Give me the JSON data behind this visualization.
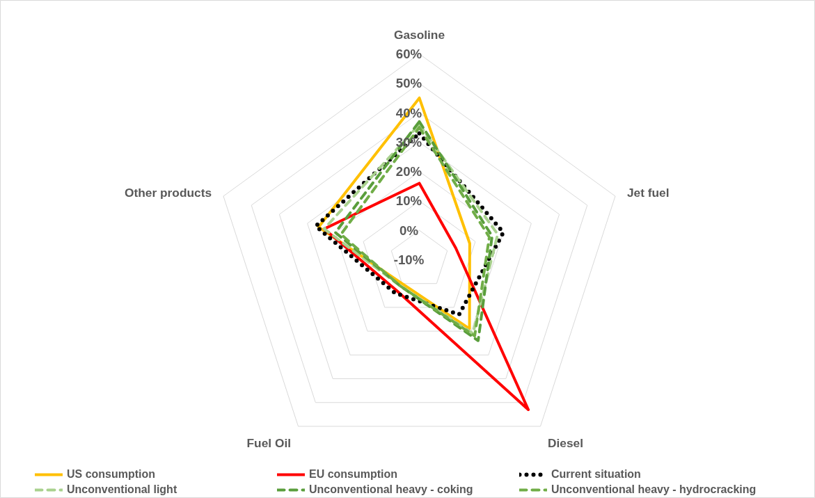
{
  "chart_data": {
    "type": "radar",
    "categories": [
      "Gasoline",
      "Jet fuel",
      "Diesel",
      "Fuel Oil",
      "Other products"
    ],
    "ylim": [
      -10,
      60
    ],
    "yticks": [
      {
        "value": -10,
        "label": "-10%"
      },
      {
        "value": 0,
        "label": "0%"
      },
      {
        "value": 10,
        "label": "10%"
      },
      {
        "value": 20,
        "label": "20%"
      },
      {
        "value": 30,
        "label": "30%"
      },
      {
        "value": 40,
        "label": "40%"
      },
      {
        "value": 50,
        "label": "50%"
      },
      {
        "value": 60,
        "label": "60%"
      }
    ],
    "grid": true,
    "legend": "bottom",
    "marker": "none",
    "series": [
      {
        "name": "US consumption",
        "color": "#ffc000",
        "line_style": "solid",
        "values": [
          45,
          8,
          19,
          0,
          26
        ]
      },
      {
        "name": "EU consumption",
        "color": "#ff0000",
        "line_style": "solid",
        "values": [
          16,
          3,
          53,
          3,
          24
        ]
      },
      {
        "name": "Current situation",
        "color": "#000000",
        "line_style": "dotted",
        "values": [
          33,
          20,
          13,
          4,
          27
        ]
      },
      {
        "name": "Unconventional light",
        "color": "#a9d18e",
        "line_style": "dashed",
        "values": [
          36,
          18,
          21,
          1,
          24
        ]
      },
      {
        "name": "Unconventional heavy - coking",
        "color": "#5a9e3c",
        "line_style": "dashed",
        "values": [
          37,
          16,
          24,
          1,
          20
        ]
      },
      {
        "name": "Unconventional heavy - hydrocracking",
        "color": "#70ad47",
        "line_style": "dashed",
        "values": [
          35,
          15,
          22,
          1,
          18
        ]
      }
    ]
  }
}
